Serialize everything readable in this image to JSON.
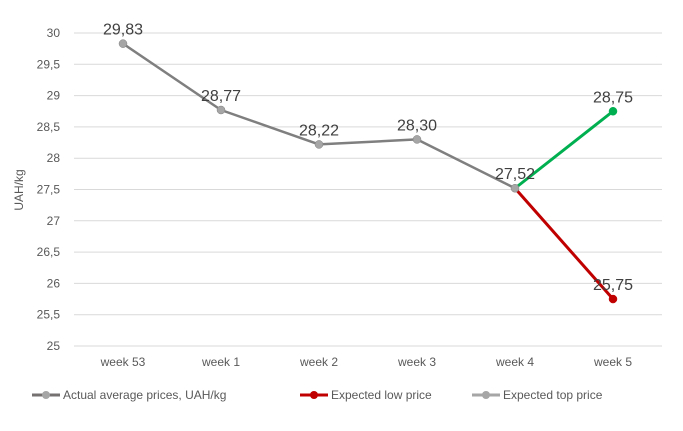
{
  "chart_data": {
    "type": "line",
    "title": "",
    "xlabel": "",
    "ylabel": "UAH/kg",
    "ylim": [
      25,
      30
    ],
    "ystep": 0.5,
    "ytick_labels": [
      "25",
      "25,5",
      "26",
      "26,5",
      "27",
      "27,5",
      "28",
      "28,5",
      "29",
      "29,5",
      "30"
    ],
    "grid": true,
    "legend_position": "bottom",
    "categories": [
      "week 53",
      "week 1",
      "week 2",
      "week 3",
      "week 4",
      "week 5"
    ],
    "series": [
      {
        "name": "Actual average prices, UAH/kg",
        "values": [
          29.83,
          28.77,
          28.22,
          28.3,
          27.52,
          null
        ],
        "labels": [
          "29,83",
          "28,77",
          "28,22",
          "28,30",
          "27,52",
          ""
        ],
        "line_color": "#7f7f7f",
        "marker_color": "#a6a6a6",
        "legend_color": "#767171"
      },
      {
        "name": "Expected low price",
        "values": [
          null,
          null,
          null,
          null,
          27.52,
          25.75
        ],
        "labels": [
          "",
          "",
          "",
          "",
          "",
          "25,75"
        ],
        "line_color": "#c00000",
        "marker_color": "#c00000",
        "legend_color": "#c00000"
      },
      {
        "name": "Expected top price",
        "values": [
          null,
          null,
          null,
          null,
          27.52,
          28.75
        ],
        "labels": [
          "",
          "",
          "",
          "",
          "",
          "28,75"
        ],
        "line_color": "#00b050",
        "marker_color": "#00b050",
        "legend_color": "#a6a6a6"
      }
    ]
  }
}
